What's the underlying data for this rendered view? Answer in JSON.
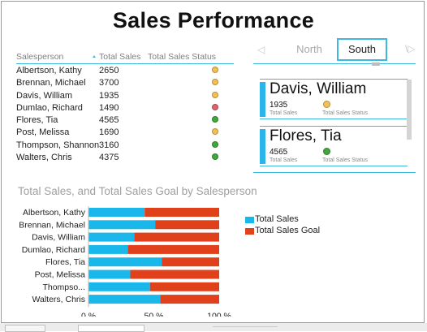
{
  "title": "Sales Performance",
  "table": {
    "headers": [
      "Salesperson",
      "Total Sales",
      "Total Sales Status"
    ],
    "rows": [
      {
        "name": "Albertson, Kathy",
        "total": "2650",
        "status": "#f4c053"
      },
      {
        "name": "Brennan, Michael",
        "total": "3700",
        "status": "#f4c053"
      },
      {
        "name": "Davis, William",
        "total": "1935",
        "status": "#f4c053"
      },
      {
        "name": "Dumlao, Richard",
        "total": "1490",
        "status": "#e0636b"
      },
      {
        "name": "Flores, Tia",
        "total": "4565",
        "status": "#3fa73c"
      },
      {
        "name": "Post, Melissa",
        "total": "1690",
        "status": "#f4c053"
      },
      {
        "name": "Thompson, Shannon",
        "total": "3160",
        "status": "#3fa73c"
      },
      {
        "name": "Walters, Chris",
        "total": "4375",
        "status": "#3fa73c"
      }
    ]
  },
  "tabs": {
    "items": [
      "North",
      "South"
    ],
    "selected": "South",
    "left_arrow": "◁",
    "right_arrow": "\\▷"
  },
  "cards": [
    {
      "name": "Davis, William",
      "total": "1935",
      "total_label": "Total Sales",
      "status_label": "Total Sales Status",
      "status": "#f4c053"
    },
    {
      "name": "Flores, Tia",
      "total": "4565",
      "total_label": "Total Sales",
      "status_label": "Total Sales Status",
      "status": "#3fa73c"
    }
  ],
  "colors": {
    "accent": "#3fb8e0",
    "total_sales": "#19b7ea",
    "total_sales_goal": "#e0411a"
  },
  "chart_data": {
    "type": "bar",
    "stacked": "percent",
    "orientation": "horizontal",
    "title": "Total Sales, and Total Sales Goal by Salesperson",
    "categories": [
      "Albertson, Kathy",
      "Brennan, Michael",
      "Davis, William",
      "Dumlao, Richard",
      "Flores, Tia",
      "Post, Melissa",
      "Thompso...",
      "Walters, Chris"
    ],
    "series": [
      {
        "name": "Total Sales",
        "values": [
          43,
          51,
          35,
          30,
          56,
          32,
          47,
          55
        ]
      },
      {
        "name": "Total Sales Goal",
        "values": [
          57,
          49,
          65,
          70,
          44,
          68,
          53,
          45
        ]
      }
    ],
    "xticks": [
      "0 %",
      "50 %",
      "100 %"
    ],
    "xlim": [
      0,
      100
    ],
    "legend": "right",
    "grid": false
  }
}
